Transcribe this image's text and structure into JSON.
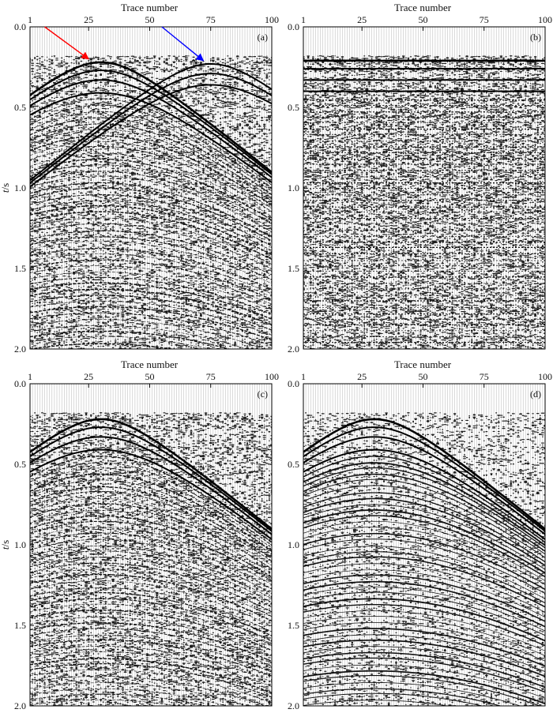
{
  "chart_data": [
    {
      "type": "seismic-wiggle",
      "panel_label": "(a)",
      "xlabel": "Trace number",
      "ylabel": "t/s",
      "xticks": [
        1,
        25,
        50,
        75,
        100
      ],
      "yticks": [
        "0.0",
        "0.5",
        "1.0",
        "1.5",
        "2.0"
      ],
      "xlim": [
        1,
        100
      ],
      "ylim": [
        0,
        2.0
      ],
      "traces": 100,
      "background_noise": 0.55,
      "events": [
        {
          "type": "hyperbola",
          "apex_trace": 30,
          "t0": 0.22,
          "velocity": 0.0125
        },
        {
          "type": "hyperbola",
          "apex_trace": 30,
          "t0": 0.27,
          "velocity": 0.0125
        },
        {
          "type": "hyperbola",
          "apex_trace": 30,
          "t0": 0.33,
          "velocity": 0.0125
        },
        {
          "type": "hyperbola",
          "apex_trace": 30,
          "t0": 0.41,
          "velocity": 0.0125
        },
        {
          "type": "hyperbola",
          "apex_trace": 75,
          "t0": 0.23,
          "velocity": 0.0125
        },
        {
          "type": "hyperbola",
          "apex_trace": 75,
          "t0": 0.29,
          "velocity": 0.0125
        },
        {
          "type": "hyperbola",
          "apex_trace": 75,
          "t0": 0.36,
          "velocity": 0.0125
        }
      ],
      "arrows": [
        {
          "color": "#ff0000",
          "from": [
            7,
            0.0
          ],
          "to": [
            25,
            0.2
          ]
        },
        {
          "color": "#0000ff",
          "from": [
            55,
            0.0
          ],
          "to": [
            72,
            0.21
          ]
        }
      ]
    },
    {
      "type": "seismic-wiggle",
      "panel_label": "(b)",
      "xlabel": "Trace number",
      "ylabel": "",
      "xticks": [
        1,
        25,
        50,
        75,
        100
      ],
      "yticks": [
        "0.0",
        "0.5",
        "1.0",
        "1.5",
        "2.0"
      ],
      "xlim": [
        1,
        100
      ],
      "ylim": [
        0,
        2.0
      ],
      "traces": 100,
      "background_noise": 0.85,
      "events": [
        {
          "type": "flat",
          "t0": 0.21
        },
        {
          "type": "flat",
          "t0": 0.26
        },
        {
          "type": "flat",
          "t0": 0.33
        },
        {
          "type": "flat",
          "t0": 0.4
        }
      ]
    },
    {
      "type": "seismic-wiggle",
      "panel_label": "(c)",
      "xlabel": "Trace number",
      "ylabel": "t/s",
      "xticks": [
        1,
        25,
        50,
        75,
        100
      ],
      "yticks": [
        "0.0",
        "0.5",
        "1.0",
        "1.5",
        "2.0"
      ],
      "xlim": [
        1,
        100
      ],
      "ylim": [
        0,
        2.0
      ],
      "traces": 100,
      "background_noise": 0.6,
      "events": [
        {
          "type": "hyperbola",
          "apex_trace": 30,
          "t0": 0.22,
          "velocity": 0.0125
        },
        {
          "type": "hyperbola",
          "apex_trace": 30,
          "t0": 0.27,
          "velocity": 0.0125
        },
        {
          "type": "hyperbola",
          "apex_trace": 30,
          "t0": 0.33,
          "velocity": 0.0125
        },
        {
          "type": "hyperbola",
          "apex_trace": 30,
          "t0": 0.41,
          "velocity": 0.0125
        }
      ]
    },
    {
      "type": "seismic-wiggle",
      "panel_label": "(d)",
      "xlabel": "Trace number",
      "ylabel": "",
      "xticks": [
        1,
        25,
        50,
        75,
        100
      ],
      "yticks": [
        "0.0",
        "0.5",
        "1.0",
        "1.5",
        "2.0"
      ],
      "xlim": [
        1,
        100
      ],
      "ylim": [
        0,
        2.0
      ],
      "traces": 100,
      "background_noise": 0.25,
      "events": [
        {
          "type": "hyperbola",
          "apex_trace": 30,
          "t0": 0.22,
          "velocity": 0.0125
        },
        {
          "type": "hyperbola",
          "apex_trace": 30,
          "t0": 0.27,
          "velocity": 0.0125
        },
        {
          "type": "hyperbola",
          "apex_trace": 30,
          "t0": 0.33,
          "velocity": 0.0125
        },
        {
          "type": "hyperbola",
          "apex_trace": 30,
          "t0": 0.41,
          "velocity": 0.0125
        }
      ]
    }
  ]
}
